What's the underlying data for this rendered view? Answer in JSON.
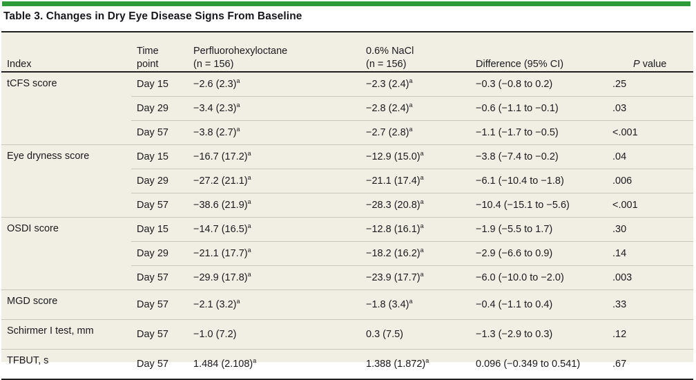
{
  "colors": {
    "accent_green": "#2d9b38",
    "table_background": "#f1eee3",
    "row_divider": "#c9c6ba",
    "heavy_rule": "#1f1f1f",
    "text": "#1a1a1f"
  },
  "title": "Table 3. Changes in Dry Eye Disease Signs From Baseline",
  "table": {
    "header": {
      "index": "Index",
      "time_lines": [
        "Time",
        "point"
      ],
      "drug_lines": [
        "Perfluorohexyloctane",
        "(n = 156)"
      ],
      "nacl_lines": [
        "0.6% NaCl",
        "(n = 156)"
      ],
      "difference": "Difference (95% CI)",
      "p_italic": "P",
      "p_rest": " value"
    },
    "footnote_marker": "a",
    "groups": [
      {
        "index": "tCFS score",
        "rows": [
          {
            "time": "Day 15",
            "drug": "−2.6 (2.3)",
            "drug_sup": "a",
            "nacl": "−2.3 (2.4)",
            "nacl_sup": "a",
            "diff": "−0.3 (−0.8 to 0.2)",
            "p": ".25"
          },
          {
            "time": "Day 29",
            "drug": "−3.4 (2.3)",
            "drug_sup": "a",
            "nacl": "−2.8 (2.4)",
            "nacl_sup": "a",
            "diff": "−0.6 (−1.1 to −0.1)",
            "p": ".03"
          },
          {
            "time": "Day 57",
            "drug": "−3.8 (2.7)",
            "drug_sup": "a",
            "nacl": "−2.7 (2.8)",
            "nacl_sup": "a",
            "diff": "−1.1 (−1.7 to −0.5)",
            "p": "<.001"
          }
        ]
      },
      {
        "index": "Eye dryness score",
        "rows": [
          {
            "time": "Day 15",
            "drug": "−16.7 (17.2)",
            "drug_sup": "a",
            "nacl": "−12.9 (15.0)",
            "nacl_sup": "a",
            "diff": "−3.8 (−7.4 to −0.2)",
            "p": ".04"
          },
          {
            "time": "Day 29",
            "drug": "−27.2 (21.1)",
            "drug_sup": "a",
            "nacl": "−21.1 (17.4)",
            "nacl_sup": "a",
            "diff": "−6.1 (−10.4 to −1.8)",
            "p": ".006"
          },
          {
            "time": "Day 57",
            "drug": "−38.6 (21.9)",
            "drug_sup": "a",
            "nacl": "−28.3 (20.8)",
            "nacl_sup": "a",
            "diff": "−10.4 (−15.1 to −5.6)",
            "p": "<.001"
          }
        ]
      },
      {
        "index": "OSDI score",
        "rows": [
          {
            "time": "Day 15",
            "drug": "−14.7 (16.5)",
            "drug_sup": "a",
            "nacl": "−12.8 (16.1)",
            "nacl_sup": "a",
            "diff": "−1.9 (−5.5 to 1.7)",
            "p": ".30"
          },
          {
            "time": "Day 29",
            "drug": "−21.1 (17.7)",
            "drug_sup": "a",
            "nacl": "−18.2 (16.2)",
            "nacl_sup": "a",
            "diff": "−2.9 (−6.6 to 0.9)",
            "p": ".14"
          },
          {
            "time": "Day 57",
            "drug": "−29.9 (17.8)",
            "drug_sup": "a",
            "nacl": "−23.9 (17.7)",
            "nacl_sup": "a",
            "diff": "−6.0 (−10.0 to −2.0)",
            "p": ".003"
          }
        ]
      },
      {
        "index": "MGD score",
        "rows": [
          {
            "time": "Day 57",
            "drug": "−2.1 (3.2)",
            "drug_sup": "a",
            "nacl": "−1.8 (3.4)",
            "nacl_sup": "a",
            "diff": "−0.4 (−1.1 to 0.4)",
            "p": ".33"
          }
        ]
      },
      {
        "index": "Schirmer I test, mm",
        "rows": [
          {
            "time": "Day 57",
            "drug": "−1.0 (7.2)",
            "drug_sup": "",
            "nacl": "0.3 (7.5)",
            "nacl_sup": "",
            "diff": "−1.3 (−2.9 to 0.3)",
            "p": ".12"
          }
        ]
      },
      {
        "index": "TFBUT, s",
        "rows": [
          {
            "time": "Day 57",
            "drug": "1.484 (2.108)",
            "drug_sup": "a",
            "nacl": "1.388 (1.872)",
            "nacl_sup": "a",
            "diff": "0.096 (−0.349 to 0.541)",
            "p": ".67"
          }
        ]
      }
    ]
  }
}
